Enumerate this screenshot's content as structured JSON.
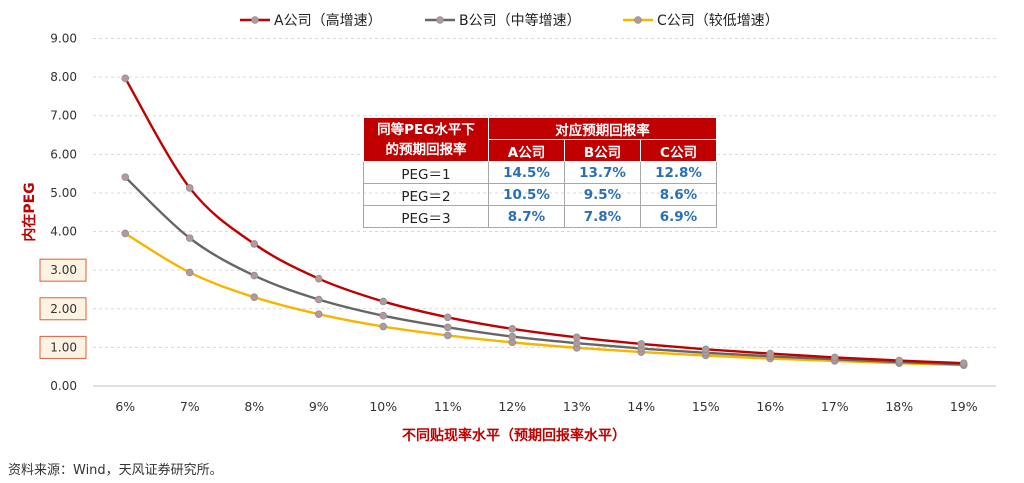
{
  "chart_data": {
    "type": "line",
    "x": [
      "6%",
      "7%",
      "8%",
      "9%",
      "10%",
      "11%",
      "12%",
      "13%",
      "14%",
      "15%",
      "16%",
      "17%",
      "18%",
      "19%"
    ],
    "xlabel": "不同贴现率水平（预期回报率水平）",
    "ylabel": "内在PEG",
    "ylim": [
      0,
      9
    ],
    "yticks": [
      "0.00",
      "1.00",
      "2.00",
      "3.00",
      "4.00",
      "5.00",
      "6.00",
      "7.00",
      "8.00",
      "9.00"
    ],
    "grid": "horizontal dashed",
    "legend_position": "top",
    "series": [
      {
        "name": "A公司（高增速）",
        "color": "#c00000",
        "values": [
          7.97,
          5.13,
          3.68,
          2.78,
          2.19,
          1.78,
          1.48,
          1.26,
          1.09,
          0.95,
          0.84,
          0.74,
          0.66,
          0.59
        ]
      },
      {
        "name": "B公司（中等增速）",
        "color": "#666666",
        "values": [
          5.41,
          3.83,
          2.86,
          2.24,
          1.82,
          1.52,
          1.28,
          1.11,
          0.97,
          0.86,
          0.77,
          0.69,
          0.62,
          0.56
        ]
      },
      {
        "name": "C公司（较低增速）",
        "color": "#f7b500",
        "values": [
          3.95,
          2.94,
          2.3,
          1.86,
          1.54,
          1.31,
          1.13,
          0.99,
          0.88,
          0.79,
          0.71,
          0.65,
          0.59,
          0.54
        ]
      }
    ],
    "highlighted_ticks": [
      "1.00",
      "2.00",
      "3.00"
    ]
  },
  "table": {
    "header_left_line1": "同等PEG水平下",
    "header_left_line2": "的预期回报率",
    "header_group": "对应预期回报率",
    "col_a": "A公司",
    "col_b": "B公司",
    "col_c": "C公司",
    "rows": [
      {
        "label": "PEG＝1",
        "a": "14.5%",
        "b": "13.7%",
        "c": "12.8%"
      },
      {
        "label": "PEG＝2",
        "a": "10.5%",
        "b": "9.5%",
        "c": "8.6%"
      },
      {
        "label": "PEG＝3",
        "a": "8.7%",
        "b": "7.8%",
        "c": "6.9%"
      }
    ]
  },
  "source": "资料来源：Wind，天风证券研究所。"
}
